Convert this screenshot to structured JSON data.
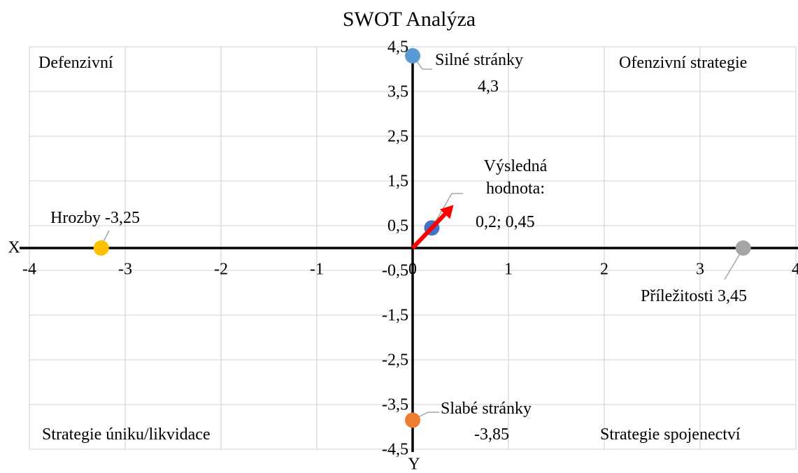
{
  "chart_data": {
    "type": "scatter",
    "title": "SWOT Analýza",
    "x_axis_label": "X",
    "y_axis_label": "Y",
    "xlim": [
      -4,
      4
    ],
    "xticks": [
      -4,
      -3,
      -2,
      -1,
      0,
      1,
      2,
      3,
      4
    ],
    "ylim": [
      -4.5,
      4.5
    ],
    "yticks": [
      {
        "value": 4.5,
        "label": "4,5"
      },
      {
        "value": 3.5,
        "label": "3,5"
      },
      {
        "value": 2.5,
        "label": "2,5"
      },
      {
        "value": 1.5,
        "label": "1,5"
      },
      {
        "value": 0.5,
        "label": "0,5"
      },
      {
        "value": -0.5,
        "label": "-0,5"
      },
      {
        "value": -1.5,
        "label": "-1,5"
      },
      {
        "value": -2.5,
        "label": "-2,5"
      },
      {
        "value": -3.5,
        "label": "-3,5"
      },
      {
        "value": -4.5,
        "label": "-4,5"
      }
    ],
    "grid": true,
    "annotations": [
      "Defenzivní",
      "Ofenzivní strategie",
      "Strategie úniku/likvidace",
      "Strategie spojenectví"
    ],
    "series": [
      {
        "name": "Silné stránky",
        "color": "#5b9bd5",
        "x": [
          0
        ],
        "values": [
          4.3
        ],
        "value_labels": [
          "4,3"
        ]
      },
      {
        "name": "Slabé stránky",
        "color": "#ed7d31",
        "x": [
          0
        ],
        "values": [
          -3.85
        ],
        "value_labels": [
          "-3,85"
        ]
      },
      {
        "name": "Příležitosti",
        "color": "#a5a5a5",
        "x": [
          3.45
        ],
        "values": [
          0
        ],
        "value_labels": [
          "3,45"
        ]
      },
      {
        "name": "Hrozby",
        "color": "#ffc000",
        "x": [
          -3.25
        ],
        "values": [
          0
        ],
        "value_labels": [
          "-3,25"
        ]
      },
      {
        "name": "Výsledná hodnota:",
        "color": "#4472c4",
        "x": [
          0.2
        ],
        "values": [
          0.45
        ],
        "value_labels": [
          "0,2; 0,45"
        ]
      }
    ]
  }
}
